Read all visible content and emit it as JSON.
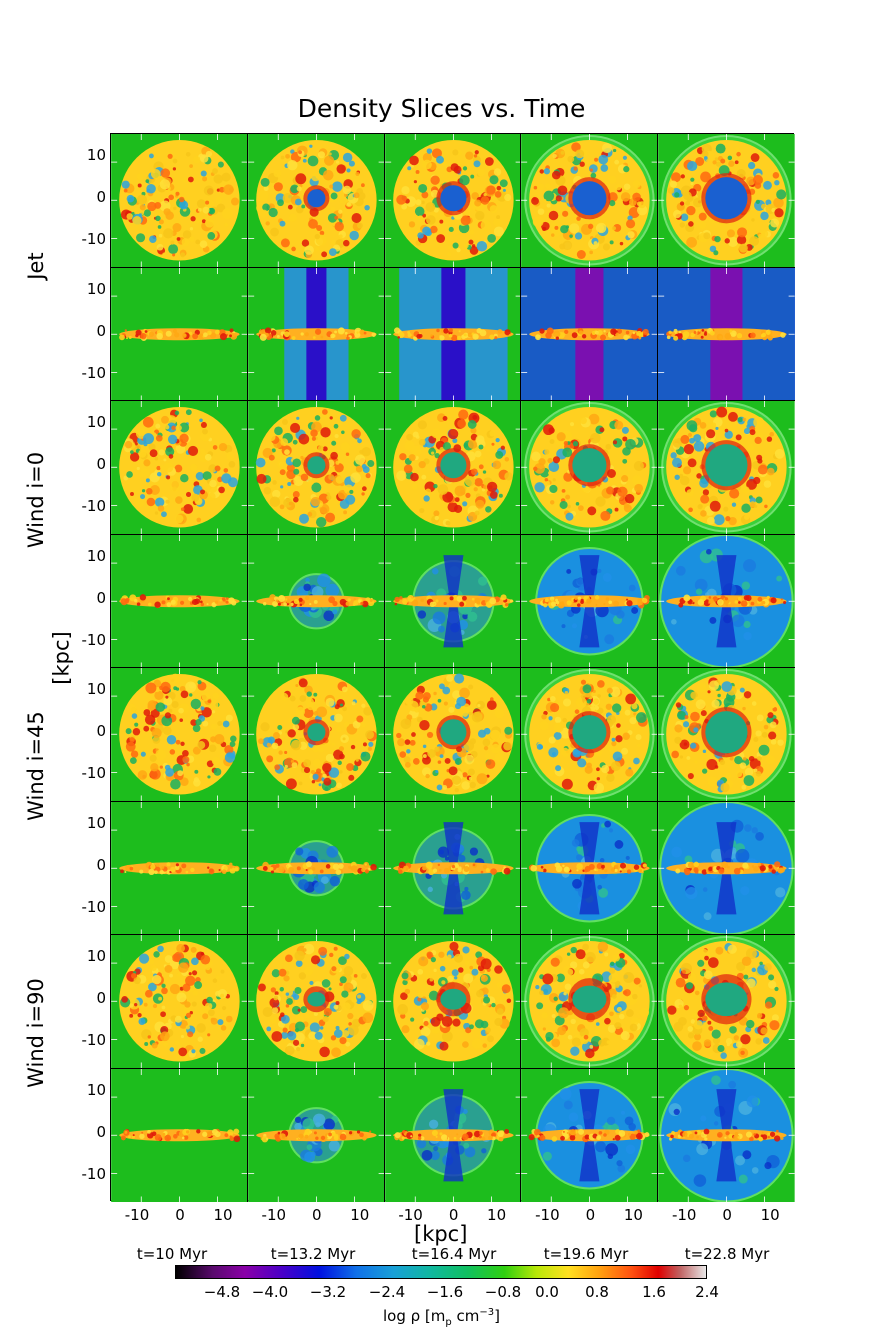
{
  "title": "Density Slices vs. Time",
  "row_labels": [
    "Jet",
    "Wind i=0",
    "Wind i=45",
    "Wind i=90"
  ],
  "y_axis_label": "[kpc]",
  "x_axis_label": "[kpc]",
  "y_ticks": [
    "10",
    "0",
    "-10"
  ],
  "x_ticks": [
    "-10",
    "0",
    "10"
  ],
  "time_labels": [
    "t=10 Myr",
    "t=13.2 Myr",
    "t=16.4 Myr",
    "t=19.6 Myr",
    "t=22.8 Myr"
  ],
  "colorbar": {
    "ticks": [
      "−4.8",
      "−4.0",
      "−3.2",
      "−2.4",
      "−1.6",
      "−0.8",
      "0.0",
      "0.8",
      "1.6",
      "2.4"
    ],
    "label": "log ρ [m",
    "label_sub": "p",
    "label_tail": " cm",
    "label_sup": "−3",
    "label_end": "]"
  }
}
